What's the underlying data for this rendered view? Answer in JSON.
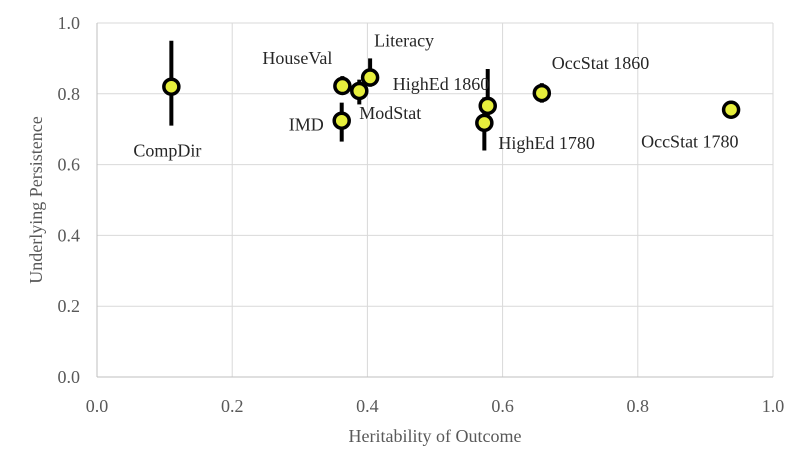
{
  "chart_data": {
    "type": "scatter",
    "title": "",
    "xlabel": "Heritability of Outcome",
    "ylabel": "Underlying Persistence",
    "xlim": [
      0,
      1
    ],
    "ylim": [
      0,
      1
    ],
    "xticks": [
      "0.0",
      "0.2",
      "0.4",
      "0.6",
      "0.8",
      "1.0"
    ],
    "yticks": [
      "0.0",
      "0.2",
      "0.4",
      "0.6",
      "0.8",
      "1.0"
    ],
    "grid": true,
    "legend": "none",
    "marker_fill": "#e6ee3c",
    "marker_stroke": "#000000",
    "points": [
      {
        "label": "CompDir",
        "x": 0.11,
        "y": 0.82,
        "err_low": 0.71,
        "err_high": 0.95
      },
      {
        "label": "HouseVal",
        "x": 0.363,
        "y": 0.822,
        "err_low": 0.8,
        "err_high": 0.85
      },
      {
        "label": "IMD",
        "x": 0.362,
        "y": 0.724,
        "err_low": 0.665,
        "err_high": 0.775
      },
      {
        "label": "ModStat",
        "x": 0.388,
        "y": 0.808,
        "err_low": 0.77,
        "err_high": 0.84
      },
      {
        "label": "Literacy",
        "x": 0.404,
        "y": 0.846,
        "err_low": 0.82,
        "err_high": 0.9
      },
      {
        "label": "HighEd 1860",
        "x": 0.578,
        "y": 0.766,
        "err_low": 0.72,
        "err_high": 0.87
      },
      {
        "label": "HighEd 1780",
        "x": 0.573,
        "y": 0.718,
        "err_low": 0.64,
        "err_high": 0.79
      },
      {
        "label": "OccStat 1860",
        "x": 0.658,
        "y": 0.802,
        "err_low": 0.775,
        "err_high": 0.83
      },
      {
        "label": "OccStat 1780",
        "x": 0.938,
        "y": 0.755,
        "err_low": 0.73,
        "err_high": 0.78
      }
    ]
  }
}
